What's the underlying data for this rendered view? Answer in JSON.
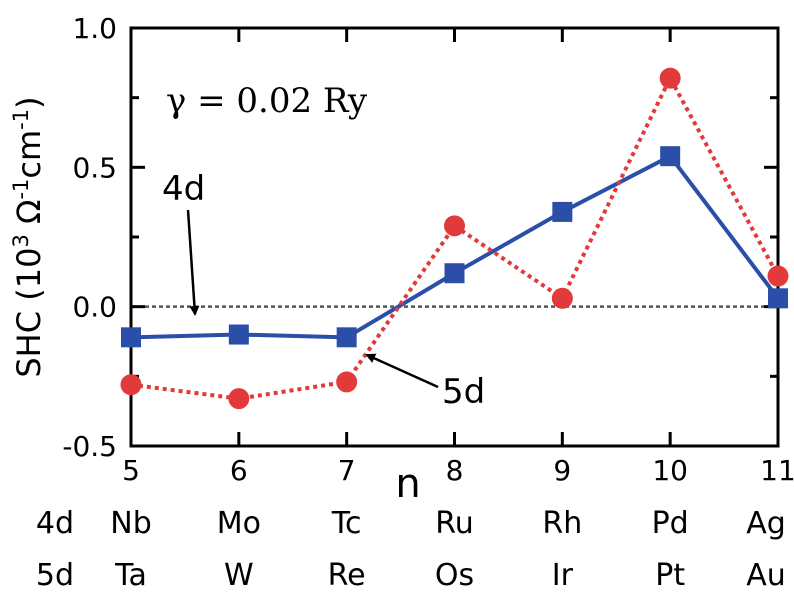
{
  "chart_data": {
    "type": "line",
    "x": [
      5,
      6,
      7,
      8,
      9,
      10,
      11
    ],
    "x_tick_labels": [
      "5",
      "6",
      "7",
      "8",
      "9",
      "10",
      "11"
    ],
    "xlabel": "n",
    "xlim": [
      5,
      11
    ],
    "ylim": [
      -0.5,
      1.0
    ],
    "y_ticks": [
      -0.5,
      0.0,
      0.5,
      1.0
    ],
    "y_tick_labels": [
      "-0.5",
      "0.0",
      "0.5",
      "1.0"
    ],
    "ylabel": {
      "prefix": "SHC (10",
      "sup1": "3",
      "omega": " Ω",
      "sup2": "-1",
      "suffix": "cm",
      "sup3": "-1",
      "close": ")"
    },
    "zero_line": true,
    "series": [
      {
        "name": "4d",
        "color": "#2b4ea8",
        "marker": "square",
        "line_style": "solid",
        "values": [
          -0.11,
          -0.1,
          -0.11,
          0.12,
          0.34,
          0.54,
          0.03
        ]
      },
      {
        "name": "5d",
        "color": "#e23a3a",
        "marker": "circle",
        "line_style": "dotted",
        "values": [
          -0.28,
          -0.33,
          -0.27,
          0.29,
          0.03,
          0.82,
          0.11
        ]
      }
    ],
    "annotations": {
      "gamma": "γ = 0.02 Ry",
      "label_4d": "4d",
      "label_5d": "5d"
    },
    "element_rows": [
      {
        "label": "4d",
        "elements": [
          "Nb",
          "Mo",
          "Tc",
          "Ru",
          "Rh",
          "Pd",
          "Ag"
        ]
      },
      {
        "label": "5d",
        "elements": [
          "Ta",
          "W",
          "Re",
          "Os",
          "Ir",
          "Pt",
          "Au"
        ]
      }
    ]
  }
}
